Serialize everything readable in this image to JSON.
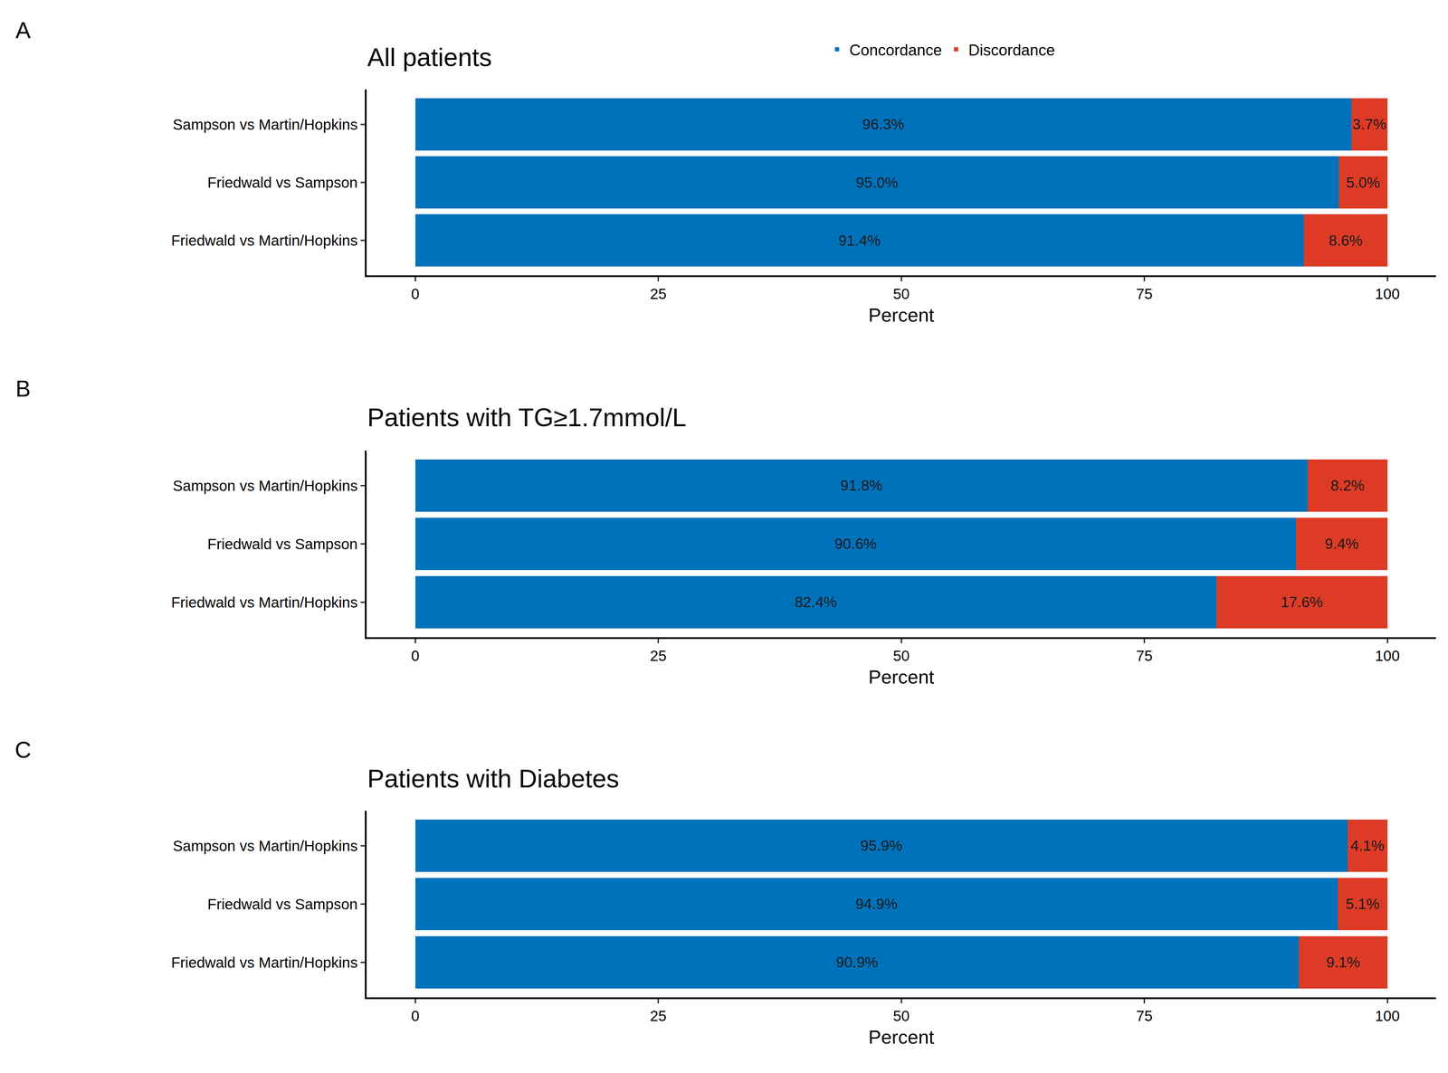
{
  "chart_data": [
    {
      "type": "bar",
      "annotations": [
        "A"
      ],
      "title": "All patients",
      "categories": [
        "Sampson vs Martin/Hopkins",
        "Friedwald vs Sampson",
        "Friedwald vs Martin/Hopkins"
      ],
      "orientation": "horizontal",
      "stacked": true,
      "data_labels": true,
      "legend": "top",
      "grid": false,
      "xlabel": "Percent",
      "xlim": [
        -5,
        105
      ],
      "xticks": [
        0,
        25,
        50,
        75,
        100
      ],
      "series": [
        {
          "name": "Concordance",
          "color": "#0072BB",
          "values": [
            96.3,
            95.0,
            91.4
          ],
          "value_labels": [
            "96.3%",
            "95.0%",
            "91.4%"
          ]
        },
        {
          "name": "Discordance",
          "color": "#DD3B26",
          "values": [
            3.7,
            5.0,
            8.6
          ],
          "value_labels": [
            "3.7%",
            "5.0%",
            "8.6%"
          ]
        }
      ]
    },
    {
      "type": "bar",
      "annotations": [
        "B"
      ],
      "title": "Patients with TG≥1.7mmol/L",
      "categories": [
        "Sampson vs Martin/Hopkins",
        "Friedwald vs Sampson",
        "Friedwald vs Martin/Hopkins"
      ],
      "orientation": "horizontal",
      "stacked": true,
      "data_labels": true,
      "grid": false,
      "xlabel": "Percent",
      "xlim": [
        -5,
        105
      ],
      "xticks": [
        0,
        25,
        50,
        75,
        100
      ],
      "series": [
        {
          "name": "Concordance",
          "color": "#0072BB",
          "values": [
            91.8,
            90.6,
            82.4
          ],
          "value_labels": [
            "91.8%",
            "90.6%",
            "82.4%"
          ]
        },
        {
          "name": "Discordance",
          "color": "#DD3B26",
          "values": [
            8.2,
            9.4,
            17.6
          ],
          "value_labels": [
            "8.2%",
            "9.4%",
            "17.6%"
          ]
        }
      ]
    },
    {
      "type": "bar",
      "annotations": [
        "C"
      ],
      "title": "Patients with Diabetes",
      "categories": [
        "Sampson vs Martin/Hopkins",
        "Friedwald vs Sampson",
        "Friedwald vs Martin/Hopkins"
      ],
      "orientation": "horizontal",
      "stacked": true,
      "data_labels": true,
      "grid": false,
      "xlabel": "Percent",
      "xlim": [
        -5,
        105
      ],
      "xticks": [
        0,
        25,
        50,
        75,
        100
      ],
      "series": [
        {
          "name": "Concordance",
          "color": "#0072BB",
          "values": [
            95.9,
            94.9,
            90.9
          ],
          "value_labels": [
            "95.9%",
            "94.9%",
            "90.9%"
          ]
        },
        {
          "name": "Discordance",
          "color": "#DD3B26",
          "values": [
            4.1,
            5.1,
            9.1
          ],
          "value_labels": [
            "4.1%",
            "5.1%",
            "9.1%"
          ]
        }
      ]
    }
  ]
}
